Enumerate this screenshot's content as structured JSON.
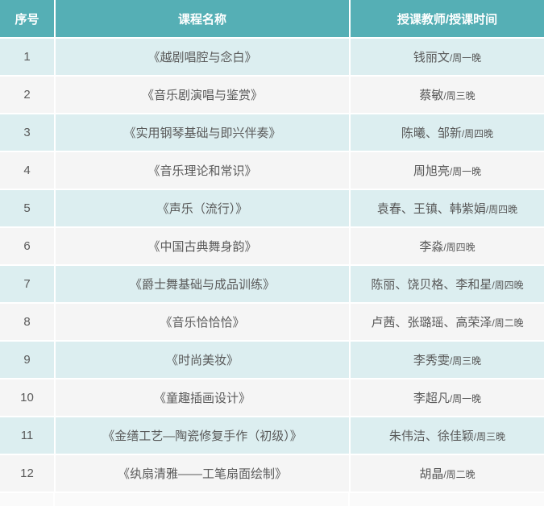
{
  "table": {
    "header": {
      "col_index": "序号",
      "col_course": "课程名称",
      "col_teacher_time": "授课教师/授课时间"
    },
    "rows": [
      {
        "index": "1",
        "course": "《越剧唱腔与念白》",
        "teachers": "钱丽文",
        "time_separator": "/",
        "time": "周一晚"
      },
      {
        "index": "2",
        "course": "《音乐剧演唱与鉴赏》",
        "teachers": "蔡敏",
        "time_separator": "/",
        "time": "周三晚"
      },
      {
        "index": "3",
        "course": "《实用钢琴基础与即兴伴奏》",
        "teachers": "陈曦、邹新",
        "time_separator": "/",
        "time": "周四晚"
      },
      {
        "index": "4",
        "course": "《音乐理论和常识》",
        "teachers": "周旭亮",
        "time_separator": "/",
        "time": "周一晚"
      },
      {
        "index": "5",
        "course": "《声乐（流行）》",
        "teachers": "袁春、王镇、韩紫娟",
        "time_separator": "/",
        "time": "周四晚"
      },
      {
        "index": "6",
        "course": "《中国古典舞身韵》",
        "teachers": "李淼",
        "time_separator": "/",
        "time": "周四晚"
      },
      {
        "index": "7",
        "course": "《爵士舞基础与成品训练》",
        "teachers": "陈丽、饶贝格、李和星",
        "time_separator": "/",
        "time": "周四晚"
      },
      {
        "index": "8",
        "course": "《音乐恰恰恰》",
        "teachers": "卢茜、张璐瑶、高荣泽",
        "time_separator": "/",
        "time": "周二晚"
      },
      {
        "index": "9",
        "course": "《时尚美妆》",
        "teachers": "李秀雯",
        "time_separator": "/",
        "time": "周三晚"
      },
      {
        "index": "10",
        "course": "《童趣插画设计》",
        "teachers": "李超凡",
        "time_separator": "/",
        "time": "周一晚"
      },
      {
        "index": "11",
        "course": "《金缮工艺—陶瓷修复手作（初级）》",
        "teachers": "朱伟洁、徐佳颖",
        "time_separator": "/",
        "time": "周三晚"
      },
      {
        "index": "12",
        "course": "《纨扇清雅——工笔扇面绘制》",
        "teachers": "胡晶",
        "time_separator": "/",
        "time": "周二晚"
      }
    ]
  },
  "colors": {
    "header_bg": "#55afb5",
    "header_text": "#ffffff",
    "row_cyan_bg": "#dceef0",
    "row_gray_bg": "#f5f5f5",
    "body_text": "#595959",
    "cell_separator": "#ffffff",
    "partial_row_bg": "#fafafa"
  }
}
